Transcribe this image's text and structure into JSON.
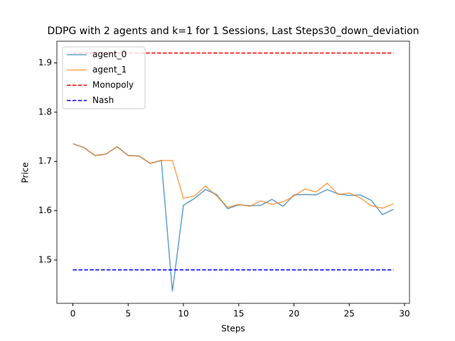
{
  "chart_data": {
    "type": "line",
    "title": "DDPG with 2 agents and k=1 for 1 Sessions, Last Steps30_down_deviation",
    "x_label": "Steps",
    "y_label": "Price",
    "x": [
      0,
      1,
      2,
      3,
      4,
      5,
      6,
      7,
      8,
      9,
      10,
      11,
      12,
      13,
      14,
      15,
      16,
      17,
      18,
      19,
      20,
      21,
      22,
      23,
      24,
      25,
      26,
      27,
      28,
      29
    ],
    "series": [
      {
        "name": "agent_0",
        "color": "#1f77b4",
        "alpha": 0.7,
        "linestyle": "solid",
        "values": [
          1.736,
          1.728,
          1.712,
          1.715,
          1.73,
          1.712,
          1.711,
          1.696,
          1.702,
          1.436,
          1.611,
          1.625,
          1.643,
          1.633,
          1.604,
          1.612,
          1.61,
          1.611,
          1.623,
          1.609,
          1.632,
          1.633,
          1.632,
          1.643,
          1.634,
          1.631,
          1.632,
          1.621,
          1.592,
          1.603
        ]
      },
      {
        "name": "agent_1",
        "color": "#ff7f0e",
        "alpha": 0.7,
        "linestyle": "solid",
        "values": [
          1.736,
          1.728,
          1.712,
          1.715,
          1.73,
          1.712,
          1.711,
          1.696,
          1.702,
          1.702,
          1.625,
          1.63,
          1.65,
          1.63,
          1.607,
          1.613,
          1.609,
          1.62,
          1.613,
          1.618,
          1.63,
          1.644,
          1.638,
          1.656,
          1.633,
          1.636,
          1.626,
          1.61,
          1.605,
          1.614
        ]
      },
      {
        "name": "Monopoly",
        "color": "#ff0000",
        "alpha": 1,
        "linestyle": "dashed",
        "values": [
          1.92,
          1.92,
          1.92,
          1.92,
          1.92,
          1.92,
          1.92,
          1.92,
          1.92,
          1.92,
          1.92,
          1.92,
          1.92,
          1.92,
          1.92,
          1.92,
          1.92,
          1.92,
          1.92,
          1.92,
          1.92,
          1.92,
          1.92,
          1.92,
          1.92,
          1.92,
          1.92,
          1.92,
          1.92,
          1.92
        ]
      },
      {
        "name": "Nash",
        "color": "#0000ff",
        "alpha": 1,
        "linestyle": "dashed",
        "values": [
          1.48,
          1.48,
          1.48,
          1.48,
          1.48,
          1.48,
          1.48,
          1.48,
          1.48,
          1.48,
          1.48,
          1.48,
          1.48,
          1.48,
          1.48,
          1.48,
          1.48,
          1.48,
          1.48,
          1.48,
          1.48,
          1.48,
          1.48,
          1.48,
          1.48,
          1.48,
          1.48,
          1.48,
          1.48,
          1.48
        ]
      }
    ],
    "xlim": [
      -1.45,
      30.45
    ],
    "xticks": [
      0,
      5,
      10,
      15,
      20,
      25,
      30
    ],
    "ylim": [
      1.412,
      1.944
    ],
    "yticks": [
      1.5,
      1.6,
      1.7,
      1.8,
      1.9
    ],
    "grid": false,
    "legend": "upper left"
  }
}
